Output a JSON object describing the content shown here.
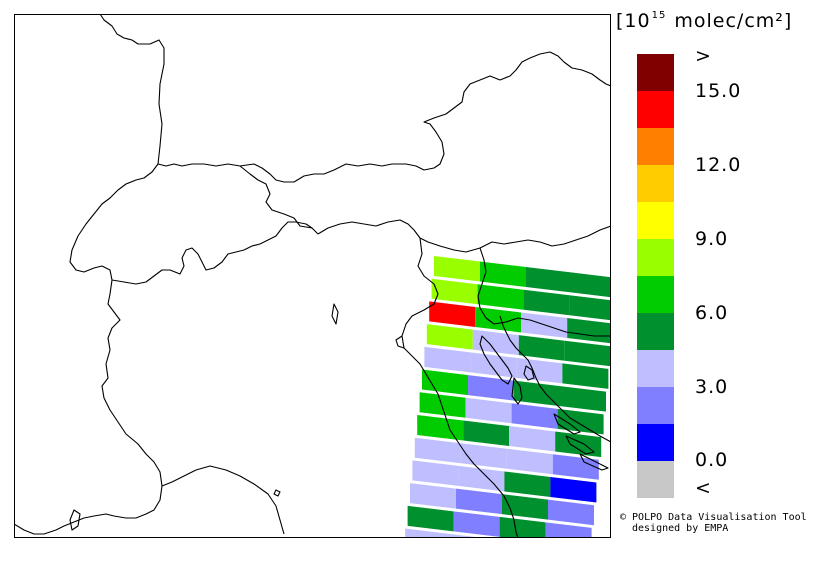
{
  "colorbar": {
    "unit_base": "[10",
    "unit_exp": "15",
    "unit_rest": " molec/cm²]",
    "colors": [
      "#c8c8c8",
      "#0000ff",
      "#7f7fff",
      "#bfbfff",
      "#00902e",
      "#00cc00",
      "#99ff00",
      "#ffff00",
      "#ffcc00",
      "#ff8000",
      "#ff0000",
      "#800000"
    ],
    "labels": [
      ">",
      "15.0",
      "12.0",
      "9.0",
      "6.0",
      "3.0",
      "0.0",
      "<"
    ]
  },
  "credit": {
    "line1": "© POLPO Data Visualisation Tool",
    "line2": "designed by EMPA"
  },
  "swath_rows": [
    [
      "#99ff00",
      "#00cc00",
      "#00902e",
      "#00902e"
    ],
    [
      "#99ff00",
      "#00cc00",
      "#00902e",
      "#00902e"
    ],
    [
      "#ff0000",
      "#00cc00",
      "#bfbfff",
      "#00902e"
    ],
    [
      "#99ff00",
      "#bfbfff",
      "#00902e",
      "#00902e"
    ],
    [
      "#bfbfff",
      "#bfbfff",
      "#bfbfff",
      "#00902e"
    ],
    [
      "#00cc00",
      "#7f7fff",
      "#00902e",
      "#00902e"
    ],
    [
      "#00cc00",
      "#bfbfff",
      "#7f7fff",
      "#00902e"
    ],
    [
      "#00cc00",
      "#00902e",
      "#bfbfff",
      "#00902e"
    ],
    [
      "#bfbfff",
      "#bfbfff",
      "#bfbfff",
      "#7f7fff"
    ],
    [
      "#bfbfff",
      "#bfbfff",
      "#00902e",
      "#0000ff"
    ],
    [
      "#bfbfff",
      "#7f7fff",
      "#00902e",
      "#7f7fff"
    ],
    [
      "#00902e",
      "#7f7fff",
      "#00902e",
      "#7f7fff"
    ],
    [
      "#bfbfff",
      "#bfbfff",
      "#00902e",
      "#0000ff"
    ],
    [
      "#bfbfff",
      "#bfbfff",
      "#00cc00",
      "#0000ff"
    ]
  ]
}
